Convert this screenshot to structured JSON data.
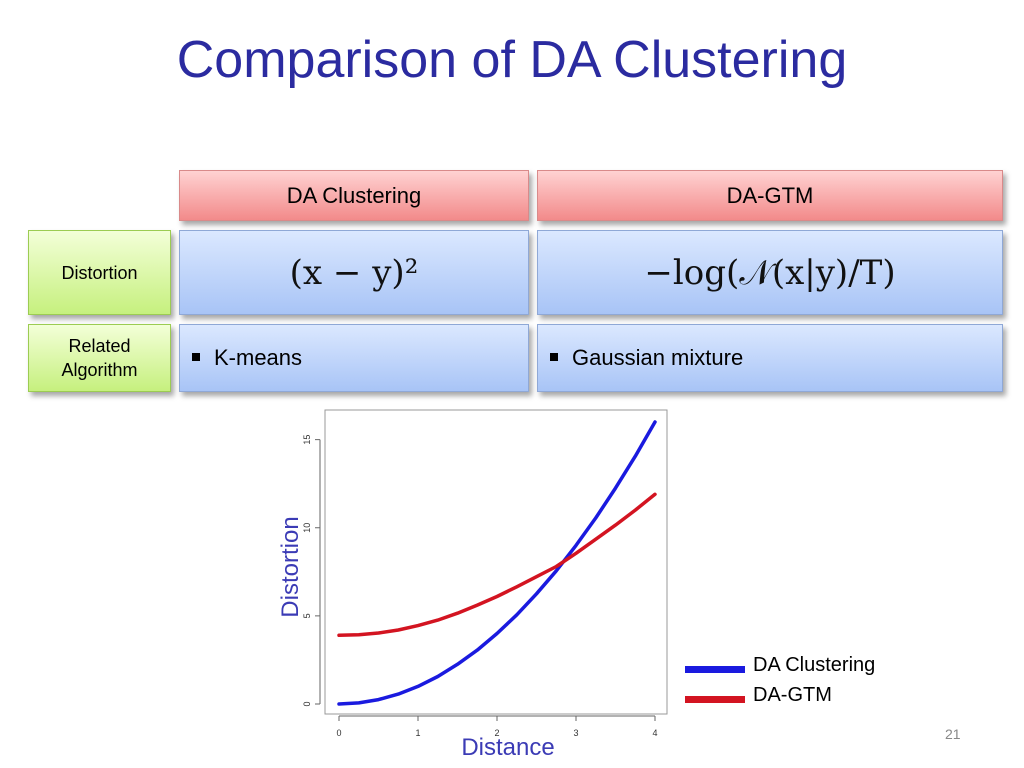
{
  "title": "Comparison of DA Clustering",
  "table": {
    "headers": [
      "DA Clustering",
      "DA-GTM"
    ],
    "rows": [
      {
        "label": "Distortion",
        "da_clustering": "(x − y)²",
        "da_gtm": "−log(𝒩(x|y)/T)"
      },
      {
        "label": "Related Algorithm",
        "da_clustering": "K-means",
        "da_gtm": "Gaussian mixture"
      }
    ]
  },
  "slide_number": "21",
  "colors": {
    "da_clustering": "#1a1adf",
    "da_gtm": "#d31421",
    "title": "#2b2ba0",
    "axis_label": "#3b3bb5"
  },
  "chart_data": {
    "type": "line",
    "xlabel": "Distance",
    "ylabel": "Distortion",
    "xlim": [
      0,
      4
    ],
    "ylim": [
      0,
      16
    ],
    "x_ticks": [
      "0",
      "1",
      "2",
      "3",
      "4"
    ],
    "y_ticks": [
      "0",
      "5",
      "10",
      "15"
    ],
    "legend_position": "bottom-right",
    "series": [
      {
        "name": "DA Clustering",
        "color": "#1a1adf",
        "x": [
          0,
          0.25,
          0.5,
          0.75,
          1,
          1.25,
          1.5,
          1.75,
          2,
          2.25,
          2.5,
          2.75,
          3,
          3.25,
          3.5,
          3.75,
          4
        ],
        "y": [
          0,
          0.06,
          0.25,
          0.56,
          1,
          1.56,
          2.25,
          3.06,
          4,
          5.06,
          6.25,
          7.56,
          9,
          10.56,
          12.25,
          14.06,
          16
        ]
      },
      {
        "name": "DA-GTM",
        "color": "#d31421",
        "x": [
          0,
          0.25,
          0.5,
          0.75,
          1,
          1.25,
          1.5,
          1.75,
          2,
          2.25,
          2.5,
          2.75,
          3,
          3.25,
          3.5,
          3.75,
          4
        ],
        "y": [
          3.9,
          3.93,
          4.03,
          4.2,
          4.45,
          4.76,
          5.15,
          5.61,
          6.1,
          6.65,
          7.22,
          7.8,
          8.55,
          9.35,
          10.15,
          11.0,
          11.9
        ]
      }
    ]
  }
}
